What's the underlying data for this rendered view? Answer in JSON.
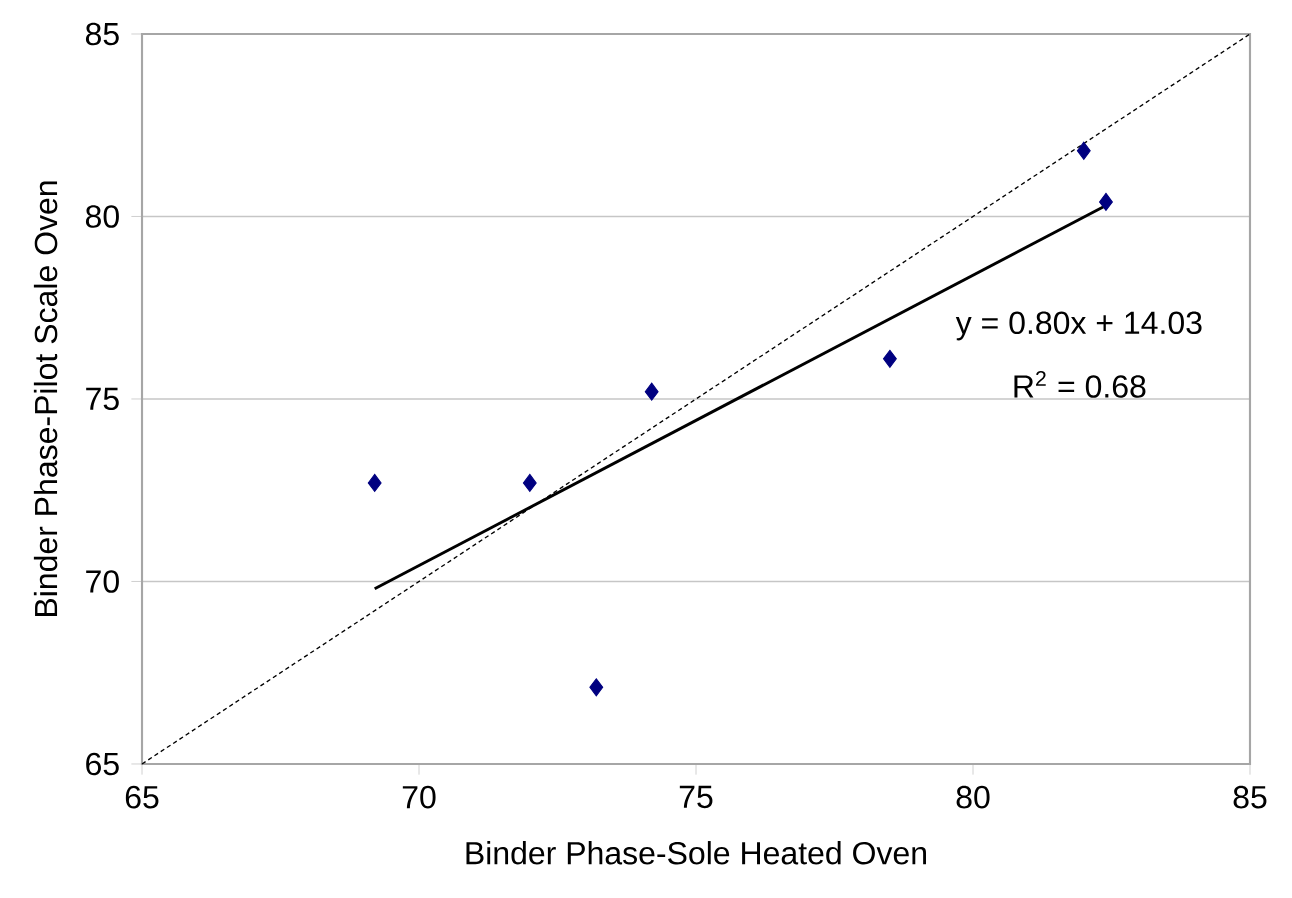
{
  "chart_data": {
    "type": "scatter",
    "xlabel": "Binder Phase-Sole Heated Oven",
    "ylabel": "Binder Phase-Pilot Scale Oven",
    "xlim": [
      65,
      85
    ],
    "xticks": [
      65,
      70,
      75,
      80,
      85
    ],
    "ylim": [
      65,
      85
    ],
    "yticks": [
      65,
      70,
      75,
      80,
      85
    ],
    "grid": "y",
    "marker": "diamond",
    "series": [
      {
        "color": "#000080",
        "x": [
          69.2,
          72.0,
          73.2,
          74.2,
          78.5,
          82.0,
          82.4
        ],
        "values": [
          72.7,
          72.7,
          67.1,
          75.2,
          76.1,
          81.8,
          80.4
        ]
      },
      {
        "type": "line",
        "color": "#000000",
        "marker": "none",
        "line_style": "solid",
        "x": [
          69.2,
          82.4
        ],
        "values": [
          69.8,
          80.3
        ]
      },
      {
        "type": "line",
        "color": "#000000",
        "marker": "none",
        "line_style": "dotted",
        "x": [
          65,
          85
        ],
        "values": [
          65,
          85
        ]
      }
    ],
    "annotations": [
      "y = 0.80x + 14.03",
      "R$^{2}$ = 0.68"
    ]
  }
}
